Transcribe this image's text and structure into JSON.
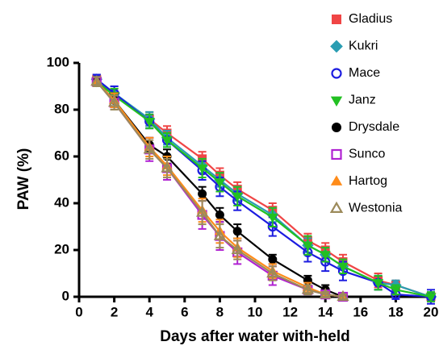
{
  "chart_data": {
    "type": "scatter",
    "xlabel": "Days after water with-held",
    "ylabel": "PAW (%)",
    "xlim": [
      0,
      20
    ],
    "xticks": [
      0,
      2,
      4,
      6,
      8,
      10,
      12,
      14,
      16,
      18,
      20
    ],
    "ylim": [
      0,
      100
    ],
    "yticks": [
      0,
      20,
      40,
      60,
      80,
      100
    ],
    "legend": "top-right",
    "series": [
      {
        "name": "Gladius",
        "color": "#f04545",
        "marker": "square",
        "filled": true,
        "x": [
          1,
          2,
          4,
          5,
          7,
          8,
          9,
          11,
          13,
          14,
          15,
          17,
          18,
          20
        ],
        "values": [
          93,
          86,
          76,
          70,
          59,
          52,
          46,
          37,
          24,
          20,
          15,
          7,
          5,
          0
        ],
        "errors": [
          2,
          3,
          3,
          3,
          3,
          3,
          3,
          3,
          3,
          3,
          3,
          3,
          2,
          2
        ]
      },
      {
        "name": "Kukri",
        "color": "#2a9db2",
        "marker": "diamond",
        "filled": true,
        "x": [
          1,
          2,
          4,
          5,
          7,
          8,
          9,
          11,
          13,
          14,
          15,
          17,
          18,
          20
        ],
        "values": [
          93,
          87,
          76,
          68,
          56,
          50,
          44,
          35,
          22,
          18,
          13,
          6,
          5,
          0
        ],
        "errors": [
          2,
          3,
          3,
          3,
          3,
          3,
          3,
          3,
          3,
          3,
          3,
          3,
          2,
          2
        ]
      },
      {
        "name": "Mace",
        "color": "#1c1ce0",
        "marker": "circle",
        "filled": false,
        "x": [
          1,
          2,
          4,
          5,
          7,
          8,
          9,
          11,
          13,
          14,
          15,
          17,
          18,
          20
        ],
        "values": [
          93,
          87,
          75,
          67,
          54,
          47,
          41,
          30,
          19,
          15,
          11,
          6,
          1,
          0
        ],
        "errors": [
          2,
          3,
          3,
          3,
          4,
          4,
          4,
          4,
          4,
          4,
          4,
          3,
          2,
          3
        ]
      },
      {
        "name": "Janz",
        "color": "#22c022",
        "marker": "triangle-down",
        "filled": true,
        "x": [
          1,
          2,
          4,
          5,
          7,
          8,
          9,
          11,
          13,
          14,
          15,
          17,
          18,
          20
        ],
        "values": [
          92,
          86,
          75,
          67,
          55,
          49,
          43,
          34,
          22,
          18,
          13,
          6,
          3,
          0
        ],
        "errors": [
          2,
          3,
          3,
          3,
          4,
          4,
          4,
          4,
          4,
          3,
          3,
          3,
          2,
          2
        ]
      },
      {
        "name": "Drysdale",
        "color": "#000000",
        "marker": "circle",
        "filled": true,
        "x": [
          1,
          2,
          4,
          5,
          7,
          8,
          9,
          11,
          13,
          14,
          15
        ],
        "values": [
          92,
          84,
          65,
          60,
          44,
          35,
          28,
          16,
          7,
          3,
          0
        ],
        "errors": [
          2,
          3,
          3,
          3,
          3,
          3,
          3,
          2,
          2,
          2,
          1
        ]
      },
      {
        "name": "Sunco",
        "color": "#b022d2",
        "marker": "square",
        "filled": false,
        "x": [
          1,
          2,
          4,
          5,
          7,
          8,
          9,
          11,
          13,
          14,
          15
        ],
        "values": [
          92,
          83,
          63,
          55,
          35,
          26,
          19,
          9,
          3,
          1,
          0
        ],
        "errors": [
          2,
          3,
          5,
          5,
          6,
          6,
          5,
          4,
          2,
          1,
          1
        ]
      },
      {
        "name": "Hartog",
        "color": "#ff8c1a",
        "marker": "triangle",
        "filled": true,
        "x": [
          1,
          2,
          4,
          5,
          7,
          8,
          9,
          11,
          13,
          14,
          15
        ],
        "values": [
          92,
          84,
          64,
          56,
          37,
          28,
          21,
          11,
          4,
          1,
          0
        ],
        "errors": [
          2,
          3,
          4,
          4,
          5,
          5,
          4,
          3,
          2,
          1,
          1
        ]
      },
      {
        "name": "Westonia",
        "color": "#9c8a5a",
        "marker": "triangle",
        "filled": false,
        "x": [
          1,
          2,
          4,
          5,
          7,
          8,
          9,
          11,
          13,
          14,
          15
        ],
        "values": [
          92,
          83,
          63,
          55,
          36,
          26,
          20,
          10,
          3,
          1,
          0
        ],
        "errors": [
          2,
          3,
          4,
          4,
          5,
          5,
          4,
          3,
          2,
          1,
          1
        ]
      }
    ]
  }
}
